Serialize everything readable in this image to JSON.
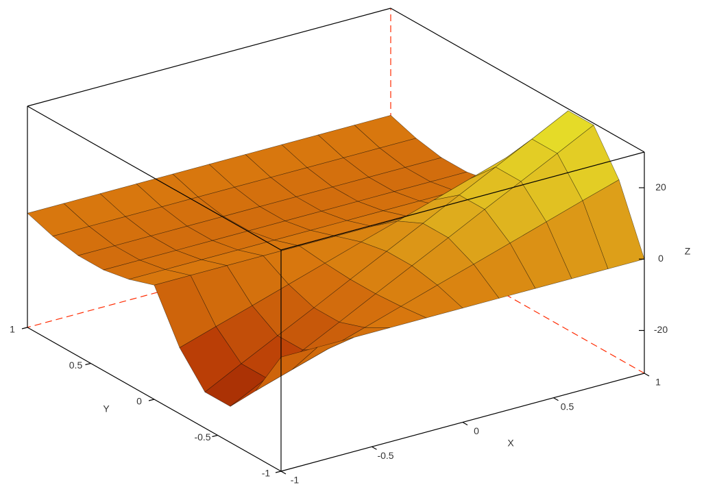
{
  "chart_data": {
    "type": "surface",
    "x": [
      -1,
      -0.8,
      -0.6,
      -0.4,
      -0.2,
      0,
      0.2,
      0.4,
      0.6,
      0.8,
      1
    ],
    "y": [
      -1,
      -0.8,
      -0.6,
      -0.4,
      -0.2,
      0,
      0.2,
      0.4,
      0.6,
      0.8,
      1
    ],
    "z": [
      [
        0,
        0,
        0,
        0,
        0,
        0,
        0,
        0,
        0,
        0,
        0
      ],
      [
        -13.5,
        -10.3,
        -7.2,
        -4.0,
        -0.8,
        2.4,
        5.5,
        8.7,
        11.9,
        15.1,
        18.2
      ],
      [
        -21.9,
        -16.7,
        -11.6,
        -6.5,
        -1.3,
        3.8,
        8.9,
        14.1,
        19.2,
        24.3,
        29.5
      ],
      [
        -21.9,
        -16.7,
        -11.6,
        -6.5,
        -1.3,
        3.8,
        8.9,
        14.1,
        19.2,
        24.3,
        29.5
      ],
      [
        -13.5,
        -10.3,
        -7.2,
        -4.0,
        -0.8,
        2.4,
        5.5,
        8.7,
        11.9,
        15.1,
        18.2
      ],
      [
        0,
        0,
        0,
        0,
        0,
        0,
        0,
        0,
        0,
        0,
        0
      ],
      [
        -2.4,
        -2.4,
        -2.4,
        -2.4,
        -2.4,
        -2.4,
        -2.4,
        -2.4,
        -2.4,
        -2.4,
        -2.4
      ],
      [
        -3.8,
        -3.8,
        -3.8,
        -3.8,
        -3.8,
        -3.8,
        -3.8,
        -3.8,
        -3.8,
        -3.8,
        -3.8
      ],
      [
        -3.8,
        -3.8,
        -3.8,
        -3.8,
        -3.8,
        -3.8,
        -3.8,
        -3.8,
        -3.8,
        -3.8,
        -3.8
      ],
      [
        -2.4,
        -2.4,
        -2.4,
        -2.4,
        -2.4,
        -2.4,
        -2.4,
        -2.4,
        -2.4,
        -2.4,
        -2.4
      ],
      [
        0,
        0,
        0,
        0,
        0,
        0,
        0,
        0,
        0,
        0,
        0
      ]
    ],
    "xlim": [
      -1,
      1
    ],
    "ylim": [
      -1,
      1
    ],
    "zlim": [
      -32,
      30
    ],
    "xticks": [
      -1,
      -0.5,
      0,
      0.5,
      1
    ],
    "yticks": [
      -1,
      -0.5,
      0,
      0.5,
      1
    ],
    "zticks": [
      -20,
      0,
      20
    ],
    "xlabel": "X",
    "ylabel": "Y",
    "zlabel": "Z",
    "colormap": [
      "#6e0c00",
      "#b83a06",
      "#d8780e",
      "#e0b820",
      "#e6e42a"
    ],
    "mesh_color": "#000000",
    "box_color": "#000000",
    "hidden_edge_color": "#ff2a00"
  }
}
